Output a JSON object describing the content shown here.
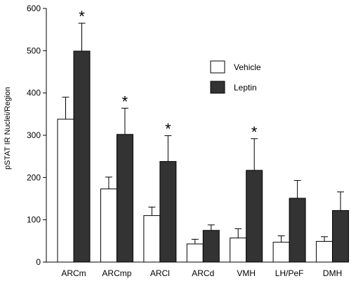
{
  "chart_data": {
    "type": "bar",
    "title": "",
    "xlabel": "",
    "ylabel": "pSTAT IR Nuclei/Region",
    "ylim": [
      0,
      600
    ],
    "yticks": [
      0,
      100,
      200,
      300,
      400,
      500,
      600
    ],
    "categories": [
      "ARCm",
      "ARCmp",
      "ARCl",
      "ARCd",
      "VMH",
      "LH/PeF",
      "DMH"
    ],
    "series": [
      {
        "name": "Vehicle",
        "color": "#ffffff",
        "values": [
          338,
          173,
          110,
          43,
          57,
          47,
          49
        ],
        "errors": [
          52,
          28,
          20,
          11,
          22,
          15,
          11
        ]
      },
      {
        "name": "Leptin",
        "color": "#333333",
        "values": [
          499,
          302,
          238,
          75,
          217,
          151,
          122
        ],
        "errors": [
          66,
          62,
          61,
          13,
          75,
          42,
          44
        ]
      }
    ],
    "significance": [
      "*",
      "*",
      "*",
      "",
      "*",
      "",
      ""
    ],
    "legend_position": "top-right",
    "grid": false
  }
}
